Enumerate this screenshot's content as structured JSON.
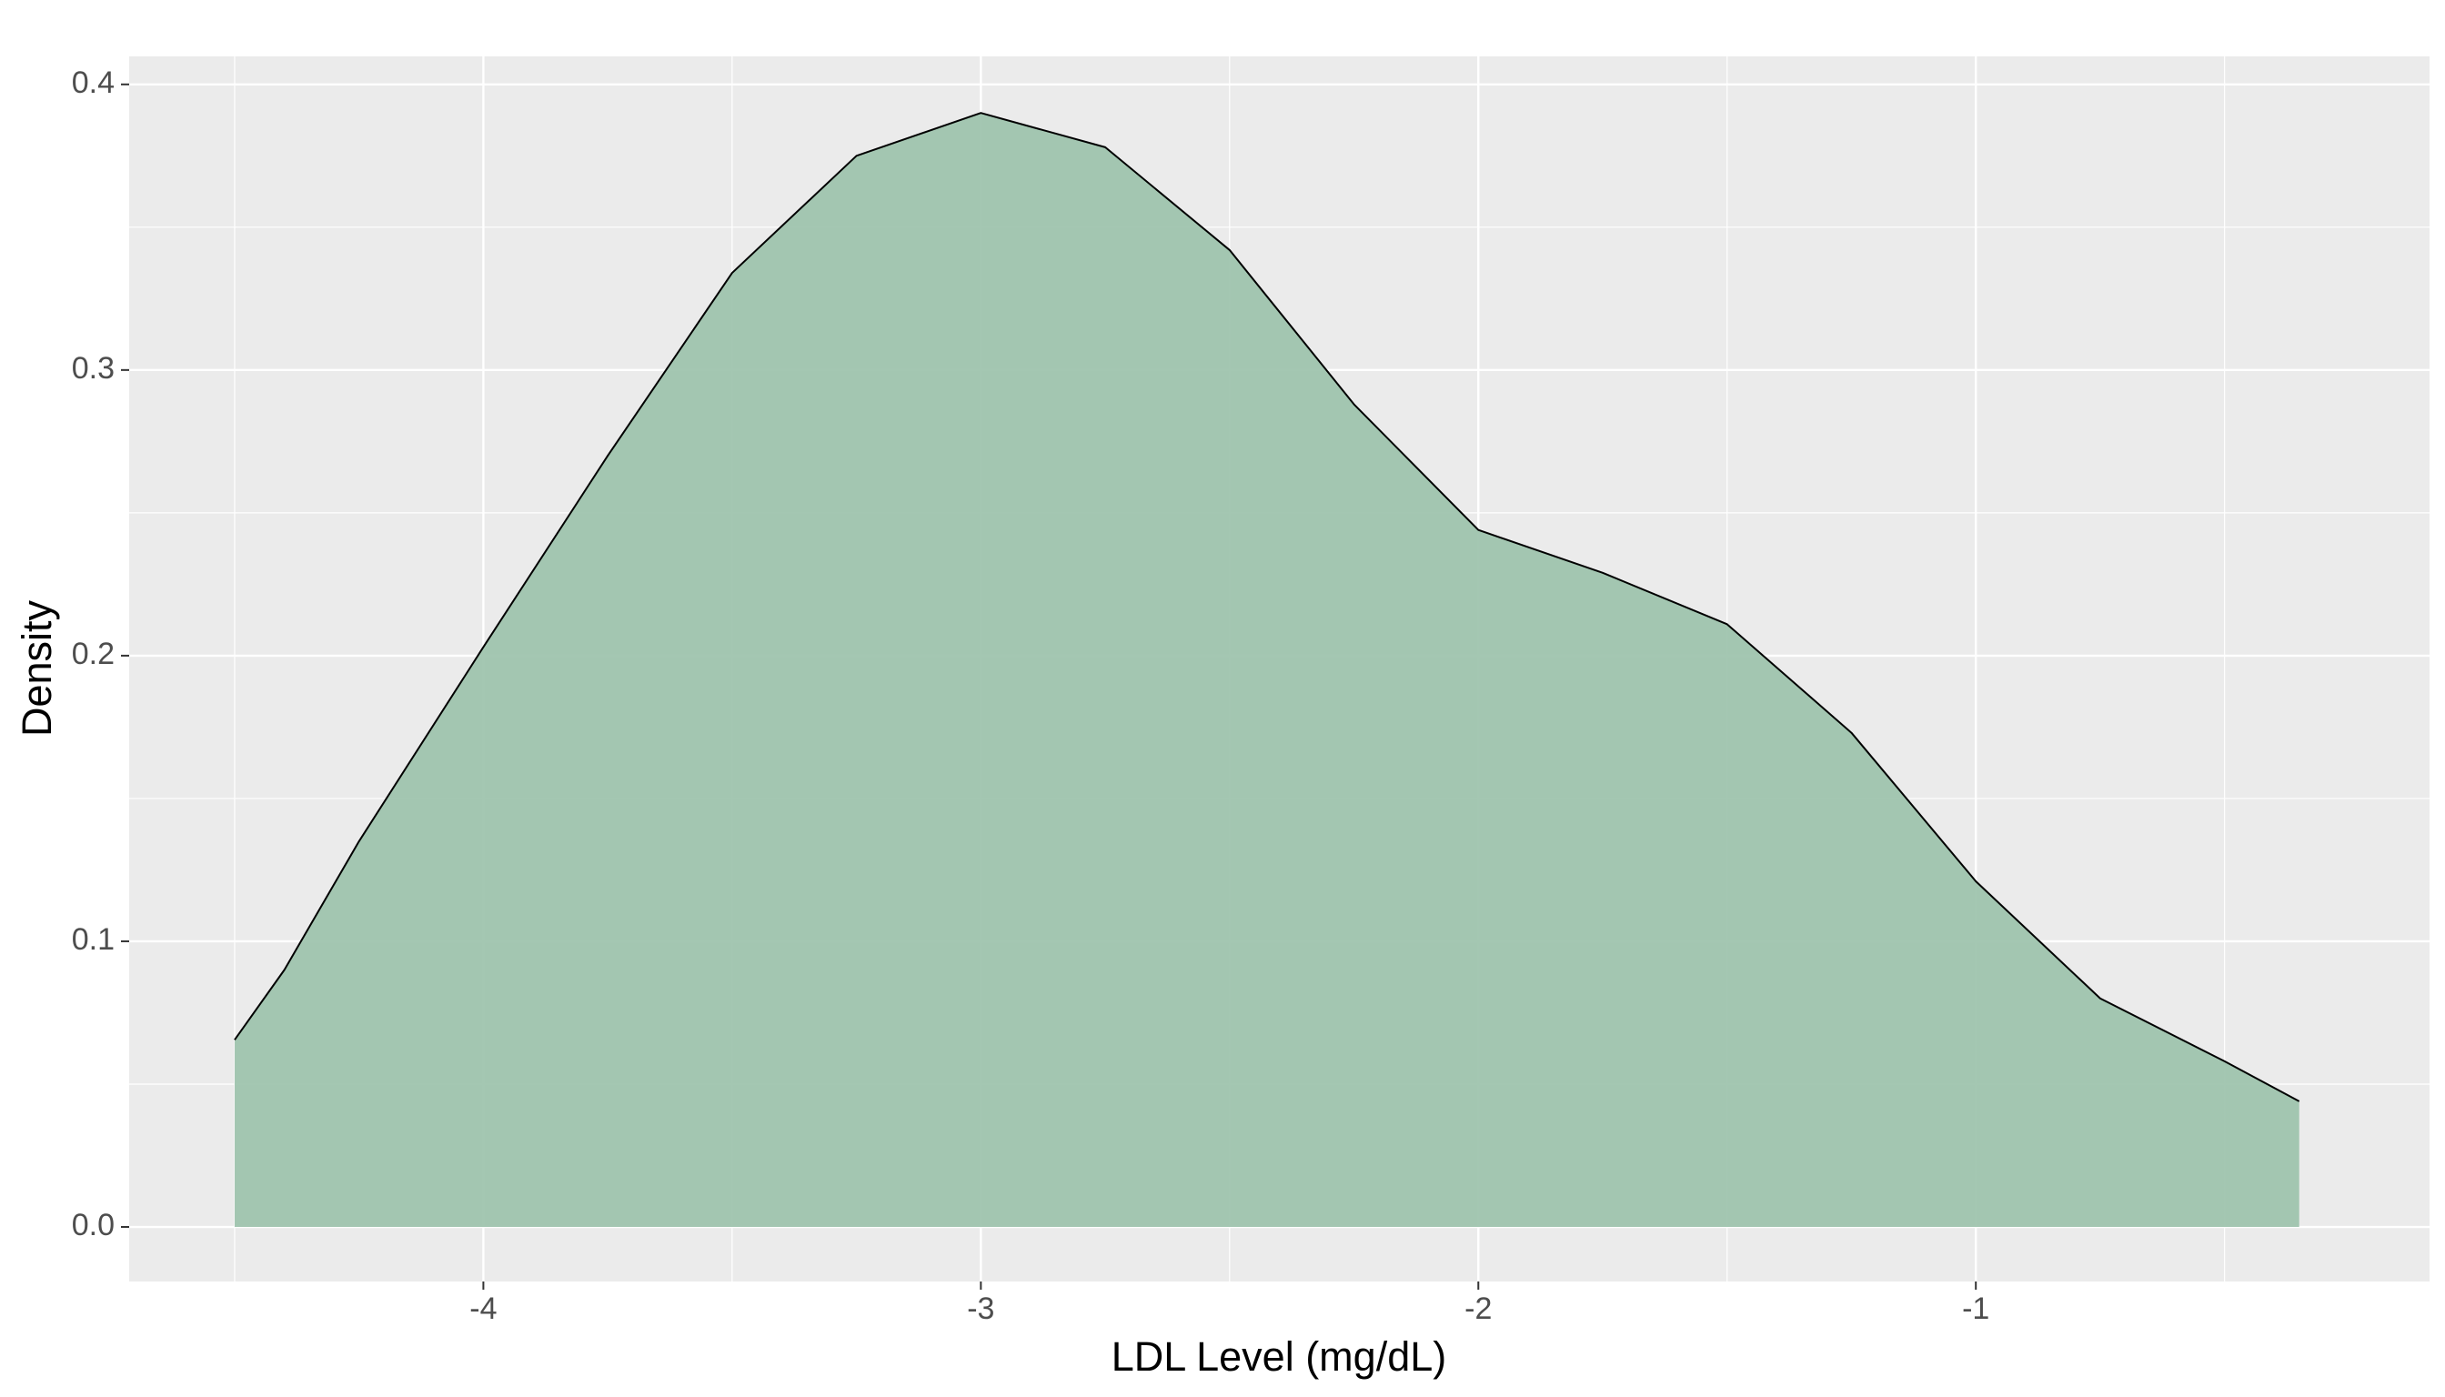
{
  "chart_data": {
    "type": "density",
    "x_label": "LDL Level (mg/dL)",
    "y_label": "Density",
    "x": [
      -4.5,
      -4.4,
      -4.25,
      -4,
      -3.75,
      -3.5,
      -3.25,
      -3,
      -2.75,
      -2.5,
      -2.25,
      -2,
      -1.75,
      -1.5,
      -1.25,
      -1,
      -0.75,
      -0.5,
      -0.35
    ],
    "y": [
      0.0655,
      0.09,
      0.135,
      0.203,
      0.27,
      0.334,
      0.375,
      0.39,
      0.378,
      0.342,
      0.288,
      0.244,
      0.229,
      0.211,
      0.173,
      0.121,
      0.08,
      0.058,
      0.044
    ],
    "fill": "#9fc4ae",
    "line_color": "#000000",
    "xlim": [
      -4.712,
      -0.088
    ],
    "ylim": [
      -0.0191,
      0.4098
    ],
    "xticks": [
      -4,
      -3,
      -2,
      -1
    ],
    "yticks": [
      {
        "value": 0,
        "label": "0.0"
      },
      0.1,
      0.2,
      0.3,
      0.4
    ],
    "xminor": [
      -4.5,
      -3.5,
      -2.5,
      -1.5,
      -0.5
    ],
    "yminor": [
      0.05,
      0.15,
      0.25,
      0.35
    ],
    "grid": true
  }
}
